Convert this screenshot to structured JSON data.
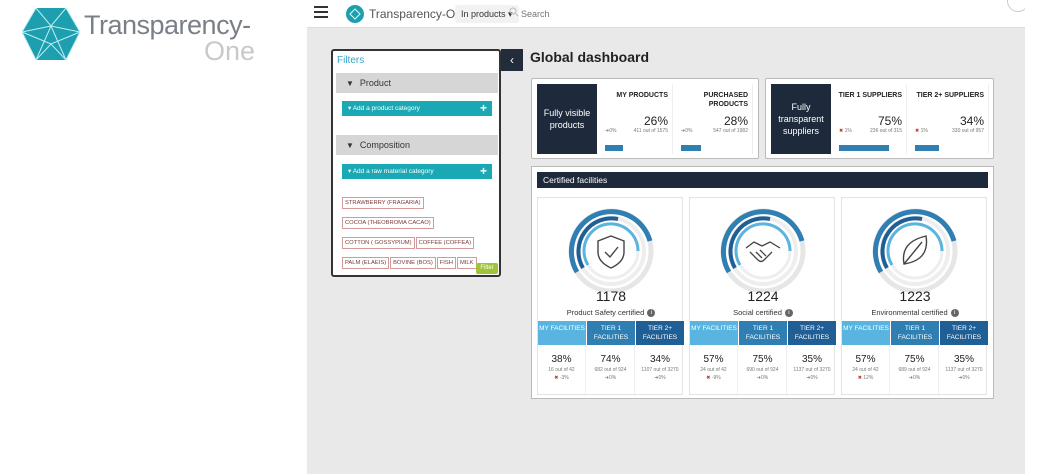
{
  "brand": {
    "word1": "Transparency-",
    "word2": "One"
  },
  "topbar": {
    "app_name": "Transparency-One",
    "scope_select": "In products ▾",
    "search_placeholder": "Search"
  },
  "filters": {
    "title": "Filters",
    "product_section": "Product",
    "add_product_category": "Add a product category",
    "composition_section": "Composition",
    "add_raw_material": "Add a raw material category",
    "tags": [
      "STRAWBERRY (FRAGARIA)",
      "COCOA (THEOBROMA CACAO)",
      "COTTON ( GOSSYPIUM)",
      "COFFEE (COFFEA)",
      "PALM (ELAEIS)",
      "BOVINE (BOS)",
      "FISH",
      "MILK"
    ],
    "filter_button": "Filter",
    "collapse_icon": "chevron-left-icon"
  },
  "dashboard": {
    "title": "Global dashboard",
    "products": {
      "headline": "Fully visible products",
      "items": [
        {
          "label": "MY PRODUCTS",
          "pct": "26%",
          "of": "411 out of 1575",
          "trend": "0%",
          "fill": 0.26
        },
        {
          "label": "PURCHASED PRODUCTS",
          "pct": "28%",
          "of": "547 out of 1982",
          "trend": "0%",
          "fill": 0.28
        }
      ]
    },
    "suppliers": {
      "headline": "Fully transparent suppliers",
      "items": [
        {
          "label": "TIER 1 SUPPLIERS",
          "pct": "75%",
          "of": "236 out of 315",
          "trend": "1%",
          "fill": 0.75
        },
        {
          "label": "TIER 2+ SUPPLIERS",
          "pct": "34%",
          "of": "330 out of 957",
          "trend": "1%",
          "fill": 0.34
        }
      ]
    },
    "certified": {
      "header": "Certified facilities",
      "tile_labels": [
        "MY FACILITIES",
        "TIER 1 FACILITIES",
        "TIER 2+ FACILITIES"
      ],
      "cards": [
        {
          "count": "1178",
          "name": "Product Safety certified",
          "icon": "shield-check-icon",
          "vals": [
            {
              "p": "38%",
              "o": "16 out of 42",
              "t": "-3%"
            },
            {
              "p": "74%",
              "o": "682 out of 924",
              "t": "0%"
            },
            {
              "p": "34%",
              "o": "1107 out of 3270",
              "t": "0%"
            }
          ]
        },
        {
          "count": "1224",
          "name": "Social certified",
          "icon": "handshake-icon",
          "vals": [
            {
              "p": "57%",
              "o": "24 out of 42",
              "t": "-9%"
            },
            {
              "p": "75%",
              "o": "690 out of 924",
              "t": "0%"
            },
            {
              "p": "35%",
              "o": "1137 out of 3270",
              "t": "0%"
            }
          ]
        },
        {
          "count": "1223",
          "name": "Environmental certified",
          "icon": "leaf-icon",
          "vals": [
            {
              "p": "57%",
              "o": "24 out of 42",
              "t": "12%"
            },
            {
              "p": "75%",
              "o": "689 out of 924",
              "t": "0%"
            },
            {
              "p": "35%",
              "o": "1137 out of 3270",
              "t": "0%"
            }
          ]
        }
      ]
    }
  },
  "colors": {
    "navy": "#1e2a3b",
    "teal": "#1aa8b4",
    "blue": "#2f7fb3",
    "light_blue": "#5ab4e0",
    "dark_blue": "#1f5f95"
  }
}
